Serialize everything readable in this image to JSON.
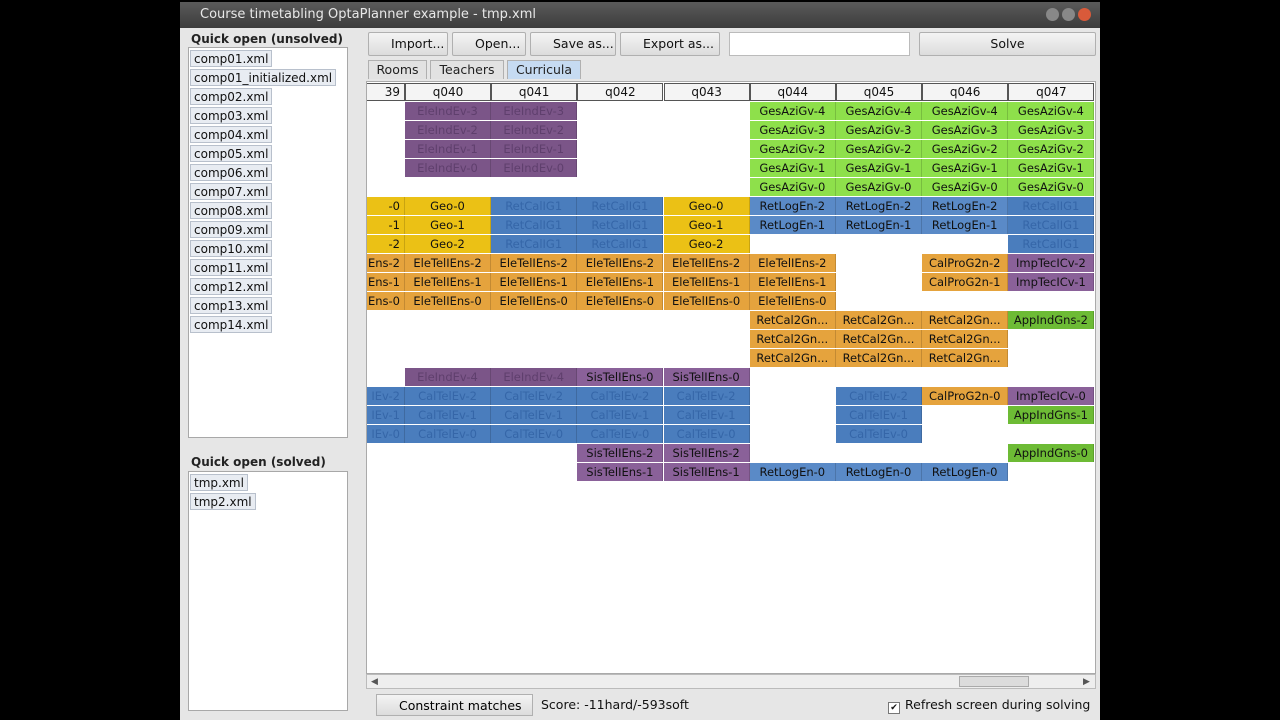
{
  "window": {
    "title": "Course timetabling OptaPlanner example - tmp.xml"
  },
  "unsolved": {
    "title": "Quick open (unsolved)",
    "files": [
      "comp01.xml",
      "comp01_initialized.xml",
      "comp02.xml",
      "comp03.xml",
      "comp04.xml",
      "comp05.xml",
      "comp06.xml",
      "comp07.xml",
      "comp08.xml",
      "comp09.xml",
      "comp10.xml",
      "comp11.xml",
      "comp12.xml",
      "comp13.xml",
      "comp14.xml"
    ]
  },
  "solved": {
    "title": "Quick open (solved)",
    "files": [
      "tmp.xml",
      "tmp2.xml"
    ]
  },
  "toolbar": {
    "buttons": [
      "Import...",
      "Open...",
      "Save as...",
      "Export as..."
    ],
    "solve": "Solve"
  },
  "tabs": {
    "items": [
      "Rooms",
      "Teachers",
      "Curricula"
    ],
    "selected": 2
  },
  "grid": {
    "columns": [
      "39",
      "q040",
      "q041",
      "q042",
      "q043",
      "q044",
      "q045",
      "q046",
      "q047"
    ],
    "rows": [
      [
        null,
        {
          "t": "EleIndEv-3",
          "bg": "#7b5588",
          "ink": "#5f3f6d"
        },
        {
          "t": "EleIndEv-3",
          "bg": "#7b5588",
          "ink": "#5f3f6d"
        },
        null,
        null,
        {
          "t": "GesAziGv-4",
          "bg": "#8ee04b"
        },
        {
          "t": "GesAziGv-4",
          "bg": "#8ee04b"
        },
        {
          "t": "GesAziGv-4",
          "bg": "#8ee04b"
        },
        {
          "t": "GesAziGv-4",
          "bg": "#8ee04b"
        }
      ],
      [
        null,
        {
          "t": "EleIndEv-2",
          "bg": "#7b5588",
          "ink": "#5f3f6d"
        },
        {
          "t": "EleIndEv-2",
          "bg": "#7b5588",
          "ink": "#5f3f6d"
        },
        null,
        null,
        {
          "t": "GesAziGv-3",
          "bg": "#8ee04b"
        },
        {
          "t": "GesAziGv-3",
          "bg": "#8ee04b"
        },
        {
          "t": "GesAziGv-3",
          "bg": "#8ee04b"
        },
        {
          "t": "GesAziGv-3",
          "bg": "#8ee04b"
        }
      ],
      [
        null,
        {
          "t": "EleIndEv-1",
          "bg": "#7b5588",
          "ink": "#5f3f6d"
        },
        {
          "t": "EleIndEv-1",
          "bg": "#7b5588",
          "ink": "#5f3f6d"
        },
        null,
        null,
        {
          "t": "GesAziGv-2",
          "bg": "#8ee04b"
        },
        {
          "t": "GesAziGv-2",
          "bg": "#8ee04b"
        },
        {
          "t": "GesAziGv-2",
          "bg": "#8ee04b"
        },
        {
          "t": "GesAziGv-2",
          "bg": "#8ee04b"
        }
      ],
      [
        null,
        {
          "t": "EleIndEv-0",
          "bg": "#7b5588",
          "ink": "#5f3f6d"
        },
        {
          "t": "EleIndEv-0",
          "bg": "#7b5588",
          "ink": "#5f3f6d"
        },
        null,
        null,
        {
          "t": "GesAziGv-1",
          "bg": "#8ee04b"
        },
        {
          "t": "GesAziGv-1",
          "bg": "#8ee04b"
        },
        {
          "t": "GesAziGv-1",
          "bg": "#8ee04b"
        },
        {
          "t": "GesAziGv-1",
          "bg": "#8ee04b"
        }
      ],
      [
        null,
        null,
        null,
        null,
        null,
        {
          "t": "GesAziGv-0",
          "bg": "#8ee04b"
        },
        {
          "t": "GesAziGv-0",
          "bg": "#8ee04b"
        },
        {
          "t": "GesAziGv-0",
          "bg": "#8ee04b"
        },
        {
          "t": "GesAziGv-0",
          "bg": "#8ee04b"
        }
      ],
      [
        {
          "t": "-0",
          "bg": "#ebc115"
        },
        {
          "t": "Geo-0",
          "bg": "#ebc115"
        },
        {
          "t": "RetCalIG1",
          "bg": "#4a7dbd",
          "ink": "#3566a8"
        },
        {
          "t": "RetCalIG1",
          "bg": "#4a7dbd",
          "ink": "#3566a8"
        },
        {
          "t": "Geo-0",
          "bg": "#ebc115"
        },
        {
          "t": "RetLogEn-2",
          "bg": "#5a8ac7"
        },
        {
          "t": "RetLogEn-2",
          "bg": "#5a8ac7"
        },
        {
          "t": "RetLogEn-2",
          "bg": "#5a8ac7"
        },
        {
          "t": "RetCalIG1",
          "bg": "#4a7dbd",
          "ink": "#3566a8"
        }
      ],
      [
        {
          "t": "-1",
          "bg": "#ebc115"
        },
        {
          "t": "Geo-1",
          "bg": "#ebc115"
        },
        {
          "t": "RetCalIG1",
          "bg": "#4a7dbd",
          "ink": "#3566a8"
        },
        {
          "t": "RetCalIG1",
          "bg": "#4a7dbd",
          "ink": "#3566a8"
        },
        {
          "t": "Geo-1",
          "bg": "#ebc115"
        },
        {
          "t": "RetLogEn-1",
          "bg": "#5a8ac7"
        },
        {
          "t": "RetLogEn-1",
          "bg": "#5a8ac7"
        },
        {
          "t": "RetLogEn-1",
          "bg": "#5a8ac7"
        },
        {
          "t": "RetCalIG1",
          "bg": "#4a7dbd",
          "ink": "#3566a8"
        }
      ],
      [
        {
          "t": "-2",
          "bg": "#ebc115"
        },
        {
          "t": "Geo-2",
          "bg": "#ebc115"
        },
        {
          "t": "RetCalIG1",
          "bg": "#4a7dbd",
          "ink": "#3566a8"
        },
        {
          "t": "RetCalIG1",
          "bg": "#4a7dbd",
          "ink": "#3566a8"
        },
        {
          "t": "Geo-2",
          "bg": "#ebc115"
        },
        null,
        null,
        null,
        {
          "t": "RetCalIG1",
          "bg": "#4a7dbd",
          "ink": "#3566a8"
        }
      ],
      [
        {
          "t": "Ens-2",
          "bg": "#e5a33d"
        },
        {
          "t": "EleTelIEns-2",
          "bg": "#e5a33d"
        },
        {
          "t": "EleTelIEns-2",
          "bg": "#e5a33d"
        },
        {
          "t": "EleTelIEns-2",
          "bg": "#e5a33d"
        },
        {
          "t": "EleTelIEns-2",
          "bg": "#e5a33d"
        },
        {
          "t": "EleTelIEns-2",
          "bg": "#e5a33d"
        },
        null,
        {
          "t": "CalProG2n-2",
          "bg": "#e5a33d"
        },
        {
          "t": "ImpTecICv-2",
          "bg": "#8a6199"
        }
      ],
      [
        {
          "t": "Ens-1",
          "bg": "#e5a33d"
        },
        {
          "t": "EleTelIEns-1",
          "bg": "#e5a33d"
        },
        {
          "t": "EleTelIEns-1",
          "bg": "#e5a33d"
        },
        {
          "t": "EleTelIEns-1",
          "bg": "#e5a33d"
        },
        {
          "t": "EleTelIEns-1",
          "bg": "#e5a33d"
        },
        {
          "t": "EleTelIEns-1",
          "bg": "#e5a33d"
        },
        null,
        {
          "t": "CalProG2n-1",
          "bg": "#e5a33d"
        },
        {
          "t": "ImpTecICv-1",
          "bg": "#8a6199"
        }
      ],
      [
        {
          "t": "Ens-0",
          "bg": "#e5a33d"
        },
        {
          "t": "EleTelIEns-0",
          "bg": "#e5a33d"
        },
        {
          "t": "EleTelIEns-0",
          "bg": "#e5a33d"
        },
        {
          "t": "EleTelIEns-0",
          "bg": "#e5a33d"
        },
        {
          "t": "EleTelIEns-0",
          "bg": "#e5a33d"
        },
        {
          "t": "EleTelIEns-0",
          "bg": "#e5a33d"
        },
        null,
        null,
        null
      ],
      [
        null,
        null,
        null,
        null,
        null,
        {
          "t": "RetCal2Gn...",
          "bg": "#e5a33d"
        },
        {
          "t": "RetCal2Gn...",
          "bg": "#e5a33d"
        },
        {
          "t": "RetCal2Gn...",
          "bg": "#e5a33d"
        },
        {
          "t": "AppIndGns-2",
          "bg": "#6dbb35"
        }
      ],
      [
        null,
        null,
        null,
        null,
        null,
        {
          "t": "RetCal2Gn...",
          "bg": "#e5a33d"
        },
        {
          "t": "RetCal2Gn...",
          "bg": "#e5a33d"
        },
        {
          "t": "RetCal2Gn...",
          "bg": "#e5a33d"
        },
        null
      ],
      [
        null,
        null,
        null,
        null,
        null,
        {
          "t": "RetCal2Gn...",
          "bg": "#e5a33d"
        },
        {
          "t": "RetCal2Gn...",
          "bg": "#e5a33d"
        },
        {
          "t": "RetCal2Gn...",
          "bg": "#e5a33d"
        },
        null
      ],
      [
        null,
        {
          "t": "EleIndEv-4",
          "bg": "#7b5588",
          "ink": "#5f3f6d"
        },
        {
          "t": "EleIndEv-4",
          "bg": "#7b5588",
          "ink": "#5f3f6d"
        },
        {
          "t": "SisTelIEns-0",
          "bg": "#8a6199"
        },
        {
          "t": "SisTelIEns-0",
          "bg": "#8a6199"
        },
        null,
        null,
        null,
        null
      ],
      [
        {
          "t": "IEv-2",
          "bg": "#4a7dbd",
          "ink": "#3566a8"
        },
        {
          "t": "CalTelEv-2",
          "bg": "#4a7dbd",
          "ink": "#3566a8"
        },
        {
          "t": "CalTelEv-2",
          "bg": "#4a7dbd",
          "ink": "#3566a8"
        },
        {
          "t": "CalTelEv-2",
          "bg": "#4a7dbd",
          "ink": "#3566a8"
        },
        {
          "t": "CalTelEv-2",
          "bg": "#4a7dbd",
          "ink": "#3566a8"
        },
        null,
        {
          "t": "CalTelEv-2",
          "bg": "#4a7dbd",
          "ink": "#3566a8"
        },
        {
          "t": "CalProG2n-0",
          "bg": "#e5a33d"
        },
        {
          "t": "ImpTecICv-0",
          "bg": "#8a6199"
        }
      ],
      [
        {
          "t": "IEv-1",
          "bg": "#4a7dbd",
          "ink": "#3566a8"
        },
        {
          "t": "CalTelEv-1",
          "bg": "#4a7dbd",
          "ink": "#3566a8"
        },
        {
          "t": "CalTelEv-1",
          "bg": "#4a7dbd",
          "ink": "#3566a8"
        },
        {
          "t": "CalTelEv-1",
          "bg": "#4a7dbd",
          "ink": "#3566a8"
        },
        {
          "t": "CalTelEv-1",
          "bg": "#4a7dbd",
          "ink": "#3566a8"
        },
        null,
        {
          "t": "CalTelEv-1",
          "bg": "#4a7dbd",
          "ink": "#3566a8"
        },
        null,
        {
          "t": "AppIndGns-1",
          "bg": "#6dbb35"
        }
      ],
      [
        {
          "t": "IEv-0",
          "bg": "#4a7dbd",
          "ink": "#3566a8"
        },
        {
          "t": "CalTelEv-0",
          "bg": "#4a7dbd",
          "ink": "#3566a8"
        },
        {
          "t": "CalTelEv-0",
          "bg": "#4a7dbd",
          "ink": "#3566a8"
        },
        {
          "t": "CalTelEv-0",
          "bg": "#4a7dbd",
          "ink": "#3566a8"
        },
        {
          "t": "CalTelEv-0",
          "bg": "#4a7dbd",
          "ink": "#3566a8"
        },
        null,
        {
          "t": "CalTelEv-0",
          "bg": "#4a7dbd",
          "ink": "#3566a8"
        },
        null,
        null
      ],
      [
        null,
        null,
        null,
        {
          "t": "SisTelIEns-2",
          "bg": "#8a6199"
        },
        {
          "t": "SisTelIEns-2",
          "bg": "#8a6199"
        },
        null,
        null,
        null,
        {
          "t": "AppIndGns-0",
          "bg": "#6dbb35"
        }
      ],
      [
        null,
        null,
        null,
        {
          "t": "SisTelIEns-1",
          "bg": "#8a6199"
        },
        {
          "t": "SisTelIEns-1",
          "bg": "#8a6199"
        },
        {
          "t": "RetLogEn-0",
          "bg": "#5a8ac7"
        },
        {
          "t": "RetLogEn-0",
          "bg": "#5a8ac7"
        },
        {
          "t": "RetLogEn-0",
          "bg": "#5a8ac7"
        },
        null
      ]
    ]
  },
  "status": {
    "constraint_matches": "Constraint matches",
    "score": "Score: -11hard/-593soft",
    "refresh": "Refresh screen during solving",
    "refresh_checked": true
  }
}
